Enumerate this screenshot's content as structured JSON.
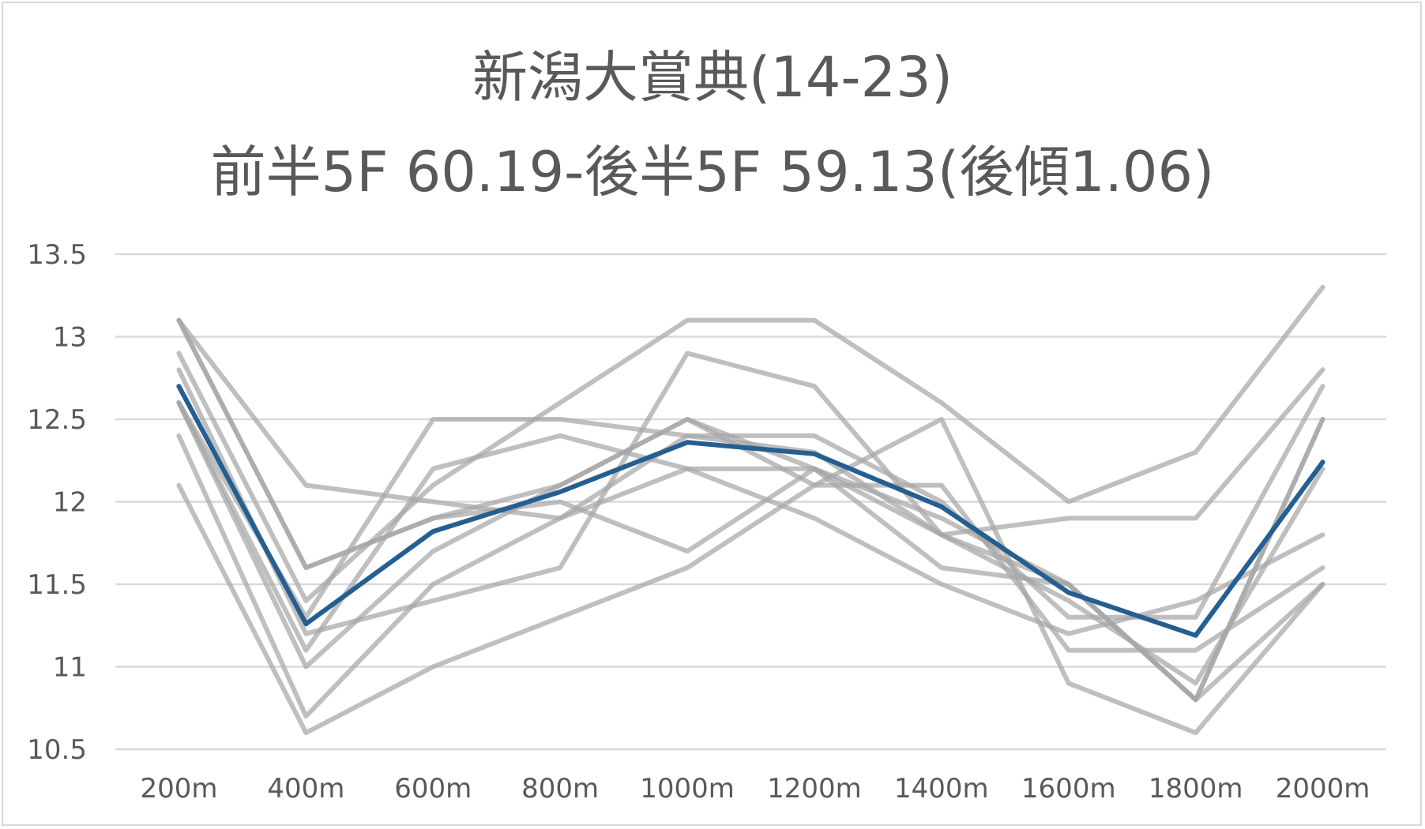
{
  "chart_data": {
    "type": "line",
    "title": "新潟大賞典(14-23)",
    "subtitle": "前半5F 60.19-後半5F 59.13(後傾1.06)",
    "xlabel": "",
    "ylabel": "",
    "categories": [
      "200m",
      "400m",
      "600m",
      "800m",
      "1000m",
      "1200m",
      "1400m",
      "1600m",
      "1800m",
      "2000m"
    ],
    "ylim": [
      10.5,
      13.5
    ],
    "yticks": [
      "13.5",
      "13",
      "12.5",
      "12",
      "11.5",
      "11",
      "10.5"
    ],
    "grid": true,
    "series": [
      {
        "values": [
          13.1,
          11.6,
          11.9,
          12.1,
          12.5,
          12.2,
          11.8,
          11.5,
          10.8,
          11.5
        ]
      },
      {
        "values": [
          13.1,
          12.1,
          12.0,
          11.9,
          12.2,
          12.2,
          11.9,
          11.5,
          10.8,
          12.5
        ]
      },
      {
        "values": [
          12.9,
          11.4,
          12.1,
          12.6,
          13.1,
          13.1,
          12.6,
          12.0,
          12.3,
          13.3
        ]
      },
      {
        "values": [
          12.8,
          11.2,
          11.4,
          11.6,
          12.9,
          12.7,
          11.8,
          11.9,
          11.9,
          12.8
        ]
      },
      {
        "values": [
          12.6,
          11.3,
          12.5,
          12.5,
          12.4,
          12.4,
          12.0,
          11.3,
          11.3,
          12.7
        ]
      },
      {
        "values": [
          12.6,
          11.0,
          11.7,
          12.1,
          12.5,
          12.1,
          12.1,
          11.1,
          11.1,
          11.6
        ]
      },
      {
        "values": [
          12.6,
          11.1,
          12.2,
          12.4,
          12.2,
          11.9,
          11.5,
          11.2,
          11.4,
          11.8
        ]
      },
      {
        "values": [
          12.4,
          10.7,
          11.5,
          11.9,
          12.4,
          12.3,
          11.8,
          11.4,
          10.9,
          12.2
        ]
      },
      {
        "values": [
          12.1,
          10.6,
          11.0,
          11.3,
          11.6,
          12.1,
          12.5,
          10.9,
          10.6,
          11.5
        ]
      },
      {
        "values": [
          13.1,
          11.6,
          11.9,
          12.0,
          11.7,
          12.2,
          11.6,
          11.5,
          10.8,
          12.5
        ]
      }
    ],
    "average": {
      "values": [
        12.7,
        11.26,
        11.82,
        12.06,
        12.36,
        12.29,
        11.97,
        11.45,
        11.19,
        12.24
      ]
    },
    "colors": {
      "series": "#a6a6a6",
      "average": "#255e91",
      "grid": "#d9d9d9",
      "text": "#595959"
    }
  }
}
